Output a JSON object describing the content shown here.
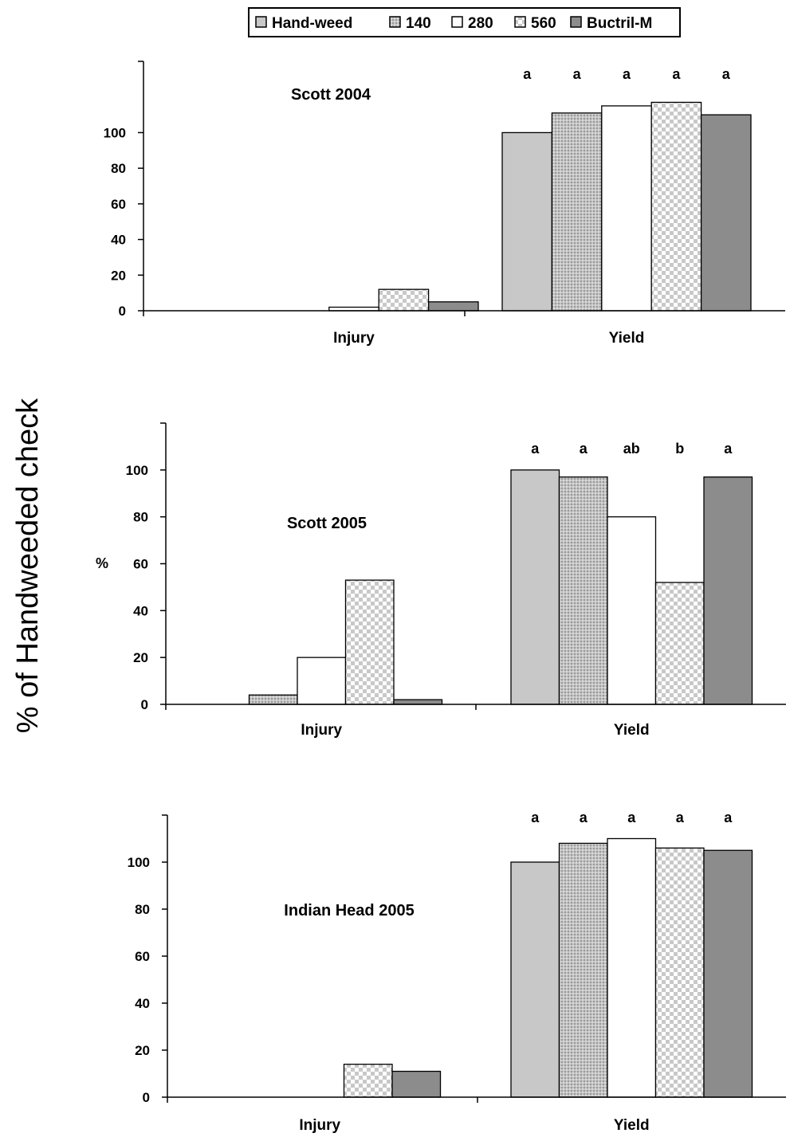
{
  "chart_data": {
    "type": "bar",
    "ylabel": "% of Handweeded check",
    "legend": {
      "position": "top-center",
      "entries": [
        "Hand-weed",
        "140",
        "280",
        "560",
        "Buctril-M"
      ]
    },
    "series_styles": [
      {
        "name": "Hand-weed",
        "fill": "#c8c8c8",
        "pattern": "solid"
      },
      {
        "name": "140",
        "fill": "#b4b4b4",
        "pattern": "fine-dots"
      },
      {
        "name": "280",
        "fill": "#ffffff",
        "pattern": "solid"
      },
      {
        "name": "560",
        "fill": "#d0d0d0",
        "pattern": "checker"
      },
      {
        "name": "Buctril-M",
        "fill": "#8c8c8c",
        "pattern": "solid"
      }
    ],
    "categories": [
      "Injury",
      "Yield"
    ],
    "panels": [
      {
        "title": "Scott 2004",
        "unit_label": "",
        "ylim": [
          0,
          140
        ],
        "yticks": [
          0,
          20,
          40,
          60,
          80,
          100
        ],
        "series": [
          {
            "name": "Hand-weed",
            "values": [
              0,
              100
            ]
          },
          {
            "name": "140",
            "values": [
              0,
              111
            ]
          },
          {
            "name": "280",
            "values": [
              2,
              115
            ]
          },
          {
            "name": "560",
            "values": [
              12,
              117
            ]
          },
          {
            "name": "Buctril-M",
            "values": [
              5,
              110
            ]
          }
        ],
        "yield_letters": [
          "a",
          "a",
          "a",
          "a",
          "a"
        ]
      },
      {
        "title": "Scott 2005",
        "unit_label": "%",
        "ylim": [
          0,
          120
        ],
        "yticks": [
          0,
          20,
          40,
          60,
          80,
          100
        ],
        "series": [
          {
            "name": "Hand-weed",
            "values": [
              0,
              100
            ]
          },
          {
            "name": "140",
            "values": [
              4,
              97
            ]
          },
          {
            "name": "280",
            "values": [
              20,
              80
            ]
          },
          {
            "name": "560",
            "values": [
              53,
              52
            ]
          },
          {
            "name": "Buctril-M",
            "values": [
              2,
              97
            ]
          }
        ],
        "yield_letters": [
          "a",
          "a",
          "ab",
          "b",
          "a"
        ]
      },
      {
        "title": "Indian Head 2005",
        "unit_label": "",
        "ylim": [
          0,
          120
        ],
        "yticks": [
          0,
          20,
          40,
          60,
          80,
          100
        ],
        "series": [
          {
            "name": "Hand-weed",
            "values": [
              0,
              100
            ]
          },
          {
            "name": "140",
            "values": [
              0,
              108
            ]
          },
          {
            "name": "280",
            "values": [
              0,
              110
            ]
          },
          {
            "name": "560",
            "values": [
              14,
              106
            ]
          },
          {
            "name": "Buctril-M",
            "values": [
              11,
              105
            ]
          }
        ],
        "yield_letters": [
          "a",
          "a",
          "a",
          "a",
          "a"
        ]
      }
    ]
  }
}
